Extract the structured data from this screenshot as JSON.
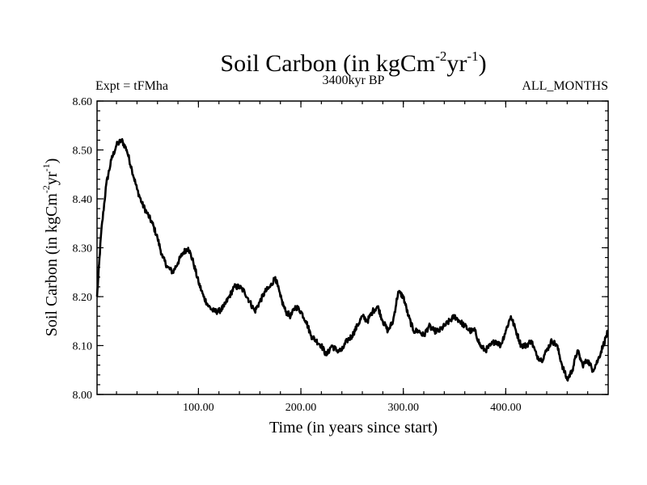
{
  "chart_data": {
    "type": "line",
    "title": "Soil Carbon (in kgCm",
    "title_sup1": "-2",
    "title_mid": "yr",
    "title_sup2": "-1",
    "title_end": ")",
    "subtitle_left": "Expt = tFMha",
    "subtitle_center": "3400kyr BP",
    "subtitle_right": "ALL_MONTHS",
    "xlabel": "Time (in years since start)",
    "ylabel": "Soil Carbon (in kgCm",
    "ylabel_sup1": "-2",
    "ylabel_mid": "yr",
    "ylabel_sup2": "-1",
    "ylabel_end": ")",
    "xlim": [
      1,
      500
    ],
    "ylim": [
      8.0,
      8.6
    ],
    "xticks": [
      100,
      200,
      300,
      400
    ],
    "xtick_labels": [
      "100.00",
      "200.00",
      "300.00",
      "400.00"
    ],
    "yticks": [
      8.0,
      8.1,
      8.2,
      8.3,
      8.4,
      8.5,
      8.6
    ],
    "ytick_labels": [
      "8.00",
      "8.10",
      "8.20",
      "8.30",
      "8.40",
      "8.50",
      "8.60"
    ],
    "grid": false,
    "line_color": "#000000",
    "series": [
      {
        "name": "Soil Carbon",
        "x": [
          1,
          5,
          10,
          15,
          20,
          25,
          30,
          35,
          40,
          45,
          50,
          55,
          60,
          65,
          70,
          75,
          80,
          85,
          90,
          95,
          100,
          105,
          110,
          115,
          120,
          125,
          130,
          135,
          140,
          145,
          150,
          155,
          160,
          165,
          170,
          175,
          180,
          185,
          190,
          195,
          200,
          205,
          210,
          215,
          220,
          225,
          230,
          235,
          240,
          245,
          250,
          255,
          260,
          265,
          270,
          275,
          280,
          285,
          290,
          295,
          300,
          305,
          310,
          315,
          320,
          325,
          330,
          335,
          340,
          345,
          350,
          355,
          360,
          365,
          370,
          375,
          380,
          385,
          390,
          395,
          400,
          405,
          410,
          415,
          420,
          425,
          430,
          435,
          440,
          445,
          450,
          455,
          460,
          465,
          470,
          475,
          480,
          485,
          490,
          495,
          500
        ],
        "values": [
          8.2,
          8.33,
          8.43,
          8.48,
          8.51,
          8.52,
          8.5,
          8.46,
          8.42,
          8.39,
          8.37,
          8.35,
          8.32,
          8.28,
          8.26,
          8.25,
          8.27,
          8.29,
          8.3,
          8.27,
          8.23,
          8.2,
          8.18,
          8.17,
          8.17,
          8.18,
          8.2,
          8.22,
          8.22,
          8.21,
          8.19,
          8.17,
          8.19,
          8.21,
          8.22,
          8.24,
          8.2,
          8.17,
          8.16,
          8.18,
          8.17,
          8.15,
          8.12,
          8.11,
          8.1,
          8.08,
          8.1,
          8.09,
          8.09,
          8.11,
          8.12,
          8.14,
          8.16,
          8.15,
          8.17,
          8.18,
          8.15,
          8.13,
          8.15,
          8.21,
          8.2,
          8.16,
          8.13,
          8.13,
          8.12,
          8.14,
          8.13,
          8.13,
          8.14,
          8.15,
          8.16,
          8.15,
          8.14,
          8.13,
          8.13,
          8.1,
          8.09,
          8.1,
          8.11,
          8.1,
          8.13,
          8.16,
          8.13,
          8.1,
          8.1,
          8.11,
          8.08,
          8.07,
          8.09,
          8.11,
          8.1,
          8.06,
          8.03,
          8.05,
          8.09,
          8.06,
          8.07,
          8.05,
          8.07,
          8.1,
          8.13
        ]
      }
    ]
  }
}
